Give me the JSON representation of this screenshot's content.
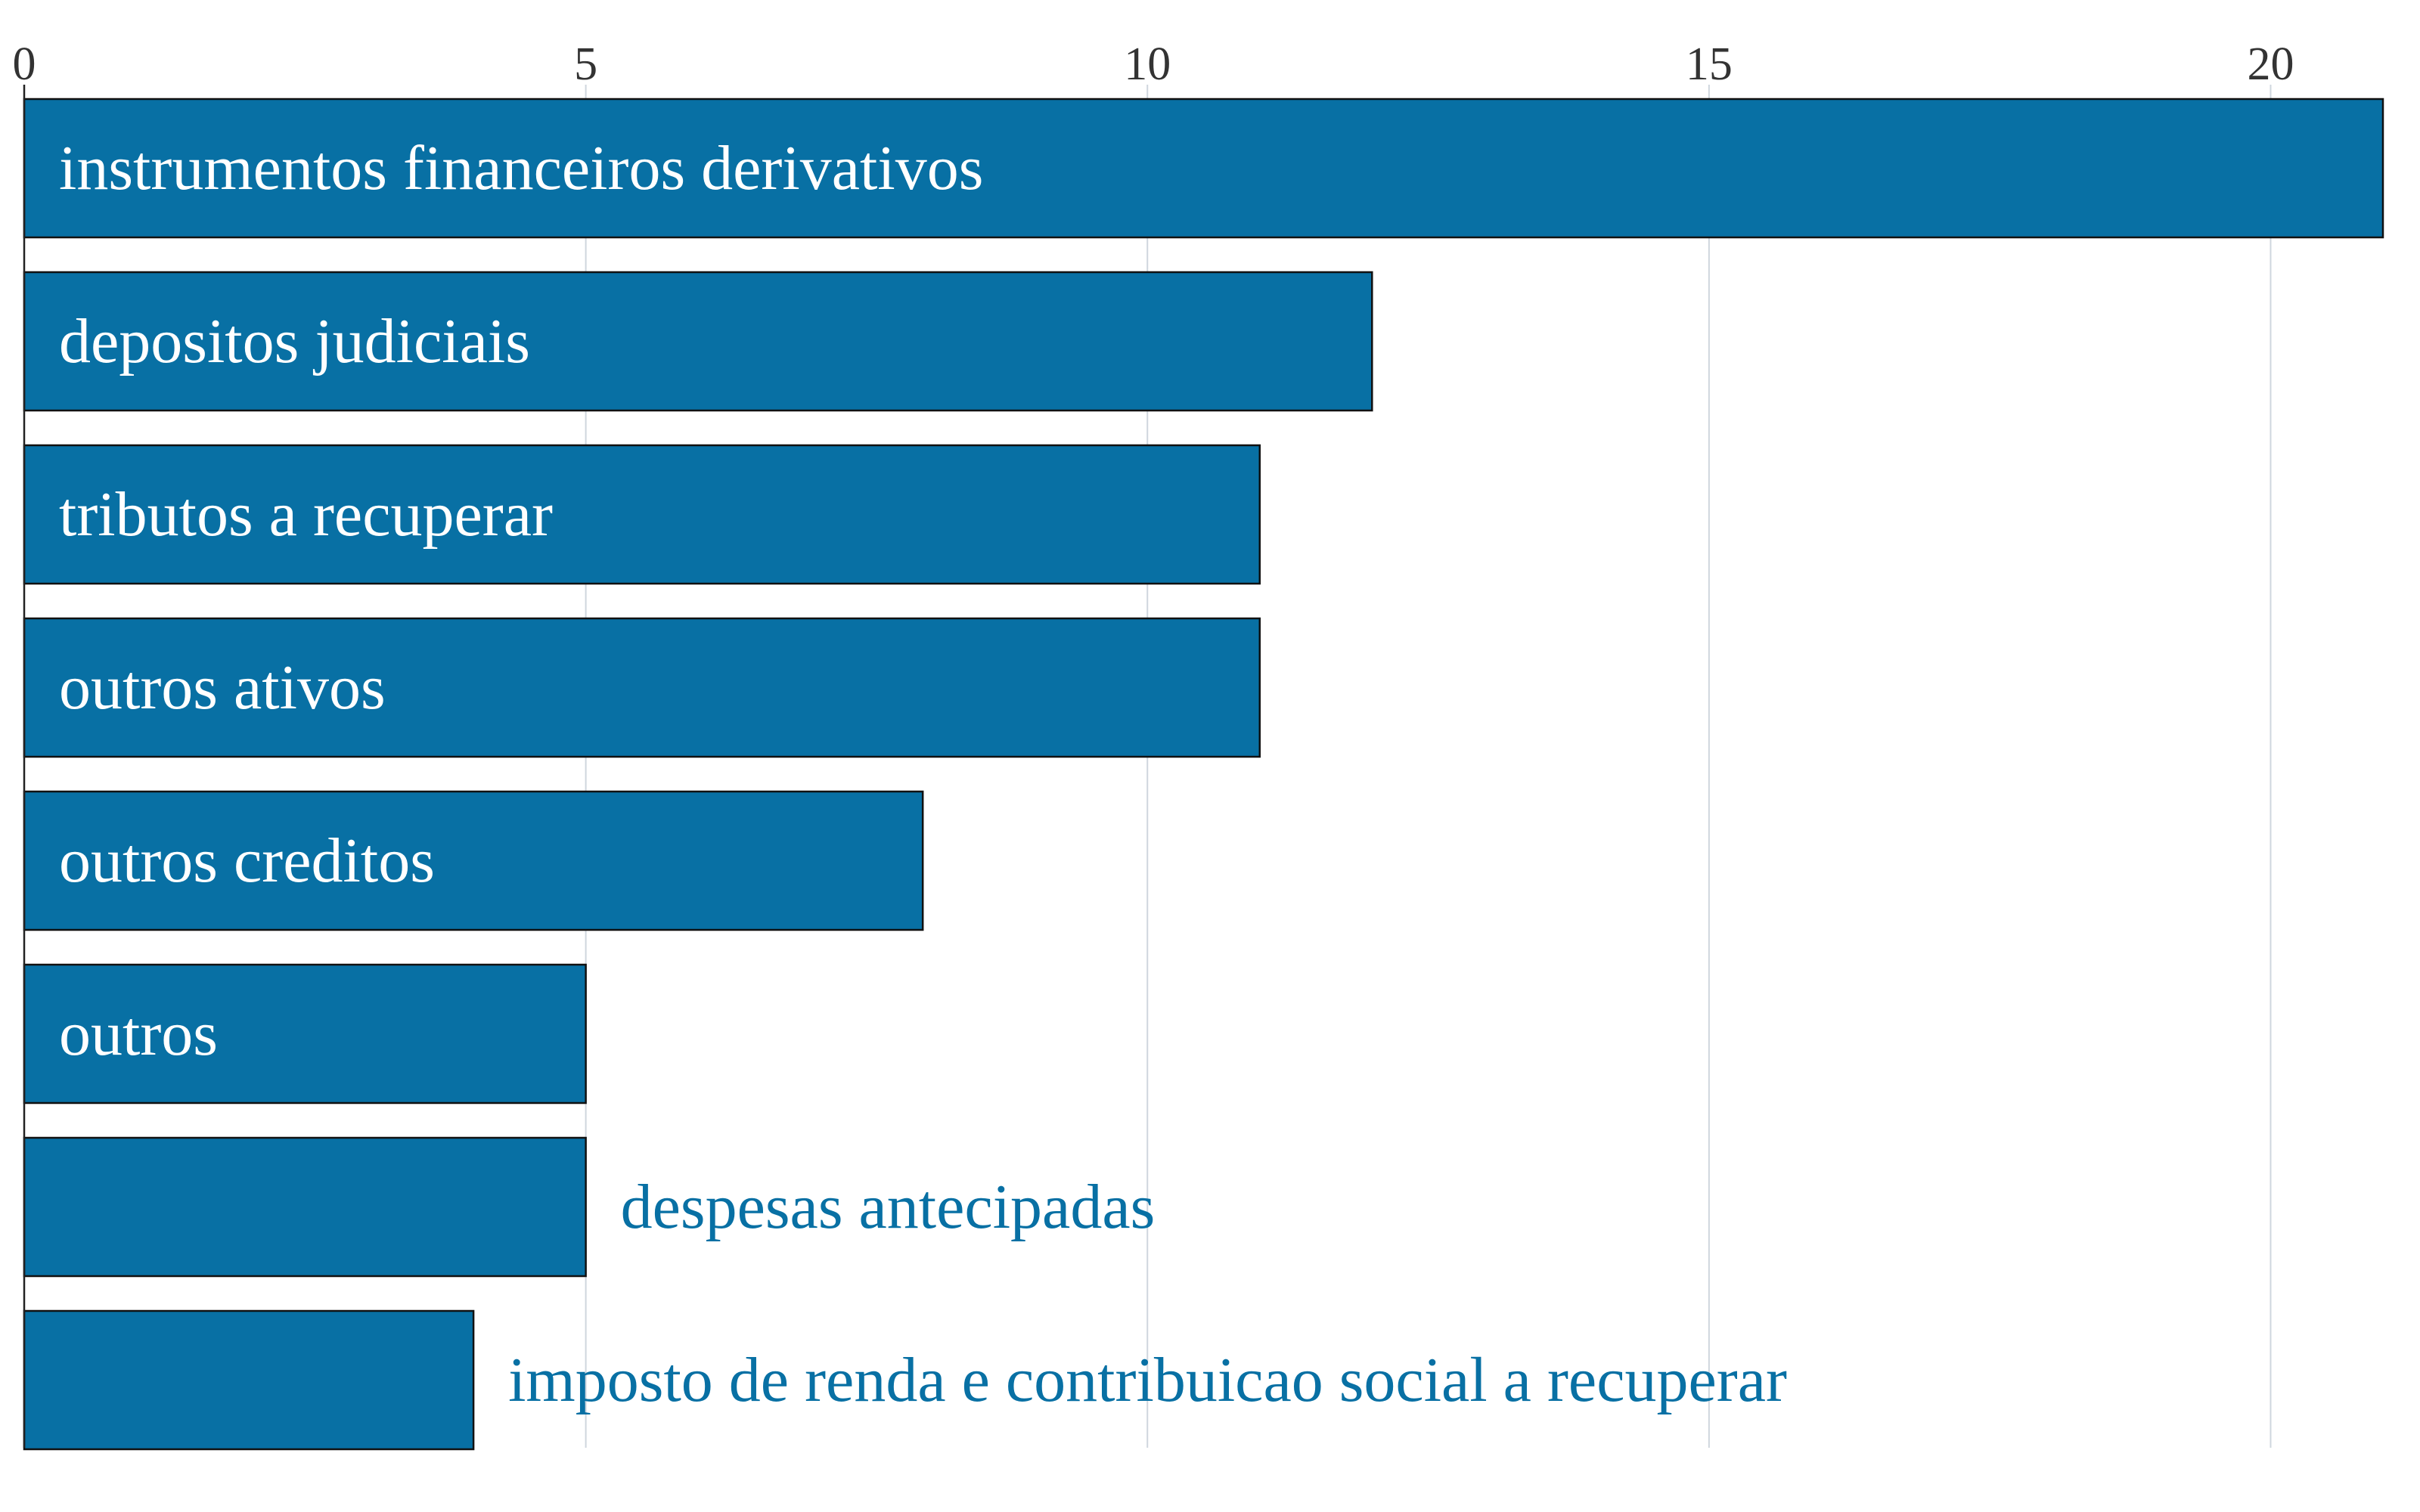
{
  "chart_data": {
    "type": "bar",
    "orientation": "horizontal",
    "title": "",
    "xlabel": "",
    "ylabel": "",
    "xlim": [
      0,
      21
    ],
    "x_ticks": [
      0,
      5,
      10,
      15,
      20
    ],
    "x_axis_position": "top",
    "grid": "vertical",
    "legend": "none",
    "categories": [
      "instrumentos financeiros derivativos",
      "depositos judiciais",
      "tributos a recuperar",
      "outros ativos",
      "outros creditos",
      "outros",
      "despesas antecipadas",
      "imposto de renda e contribuicao social a recuperar"
    ],
    "values": [
      21,
      12,
      11,
      11,
      8,
      5,
      5,
      4
    ],
    "colors": {
      "bar": "#0870a4",
      "label_inside": "#ffffff",
      "label_outside": "#0870a4",
      "grid": "#cfd6de",
      "axis": "#222222"
    }
  }
}
